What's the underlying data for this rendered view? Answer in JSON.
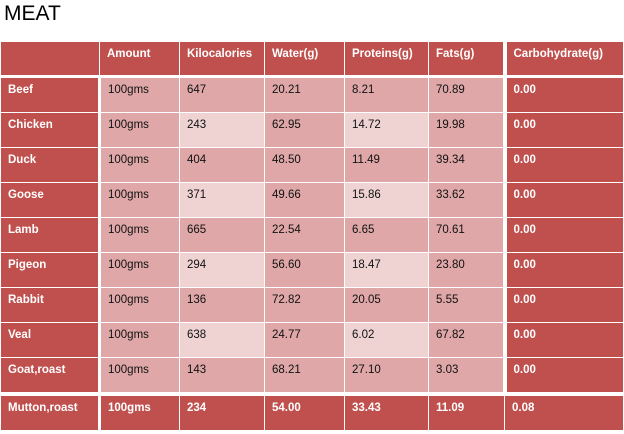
{
  "title": "MEAT",
  "headers": [
    "",
    "Amount",
    "Kilocalories",
    "Water(g)",
    "Proteins(g)",
    "Fats(g)",
    "Carbohydrate(g)"
  ],
  "rows": [
    [
      "Beef",
      "100gms",
      "647",
      "20.21",
      "8.21",
      "70.89",
      "0.00"
    ],
    [
      "Chicken",
      "100gms",
      "243",
      "62.95",
      "14.72",
      "19.98",
      "0.00"
    ],
    [
      "Duck",
      "100gms",
      "404",
      "48.50",
      "11.49",
      "39.34",
      "0.00"
    ],
    [
      "Goose",
      "100gms",
      "371",
      "49.66",
      "15.86",
      "33.62",
      "0.00"
    ],
    [
      "Lamb",
      "100gms",
      "665",
      "22.54",
      "6.65",
      "70.61",
      "0.00"
    ],
    [
      "Pigeon",
      "100gms",
      "294",
      "56.60",
      "18.47",
      "23.80",
      "0.00"
    ],
    [
      "Rabbit",
      "100gms",
      "136",
      "72.82",
      "20.05",
      "5.55",
      "0.00"
    ],
    [
      "Veal",
      "100gms",
      "638",
      "24.77",
      "6.02",
      "67.82",
      "0.00"
    ],
    [
      "Goat,roast",
      "100gms",
      "143",
      "68.21",
      "27.10",
      "3.03",
      "0.00"
    ]
  ],
  "total_row": [
    "Mutton,roast",
    "100gms",
    "234",
    "54.00",
    "33.43",
    "11.09",
    "0.08"
  ],
  "colors": {
    "dark": "#c0504d",
    "medium": "#dfa7a7",
    "light": "#efd3d3"
  }
}
